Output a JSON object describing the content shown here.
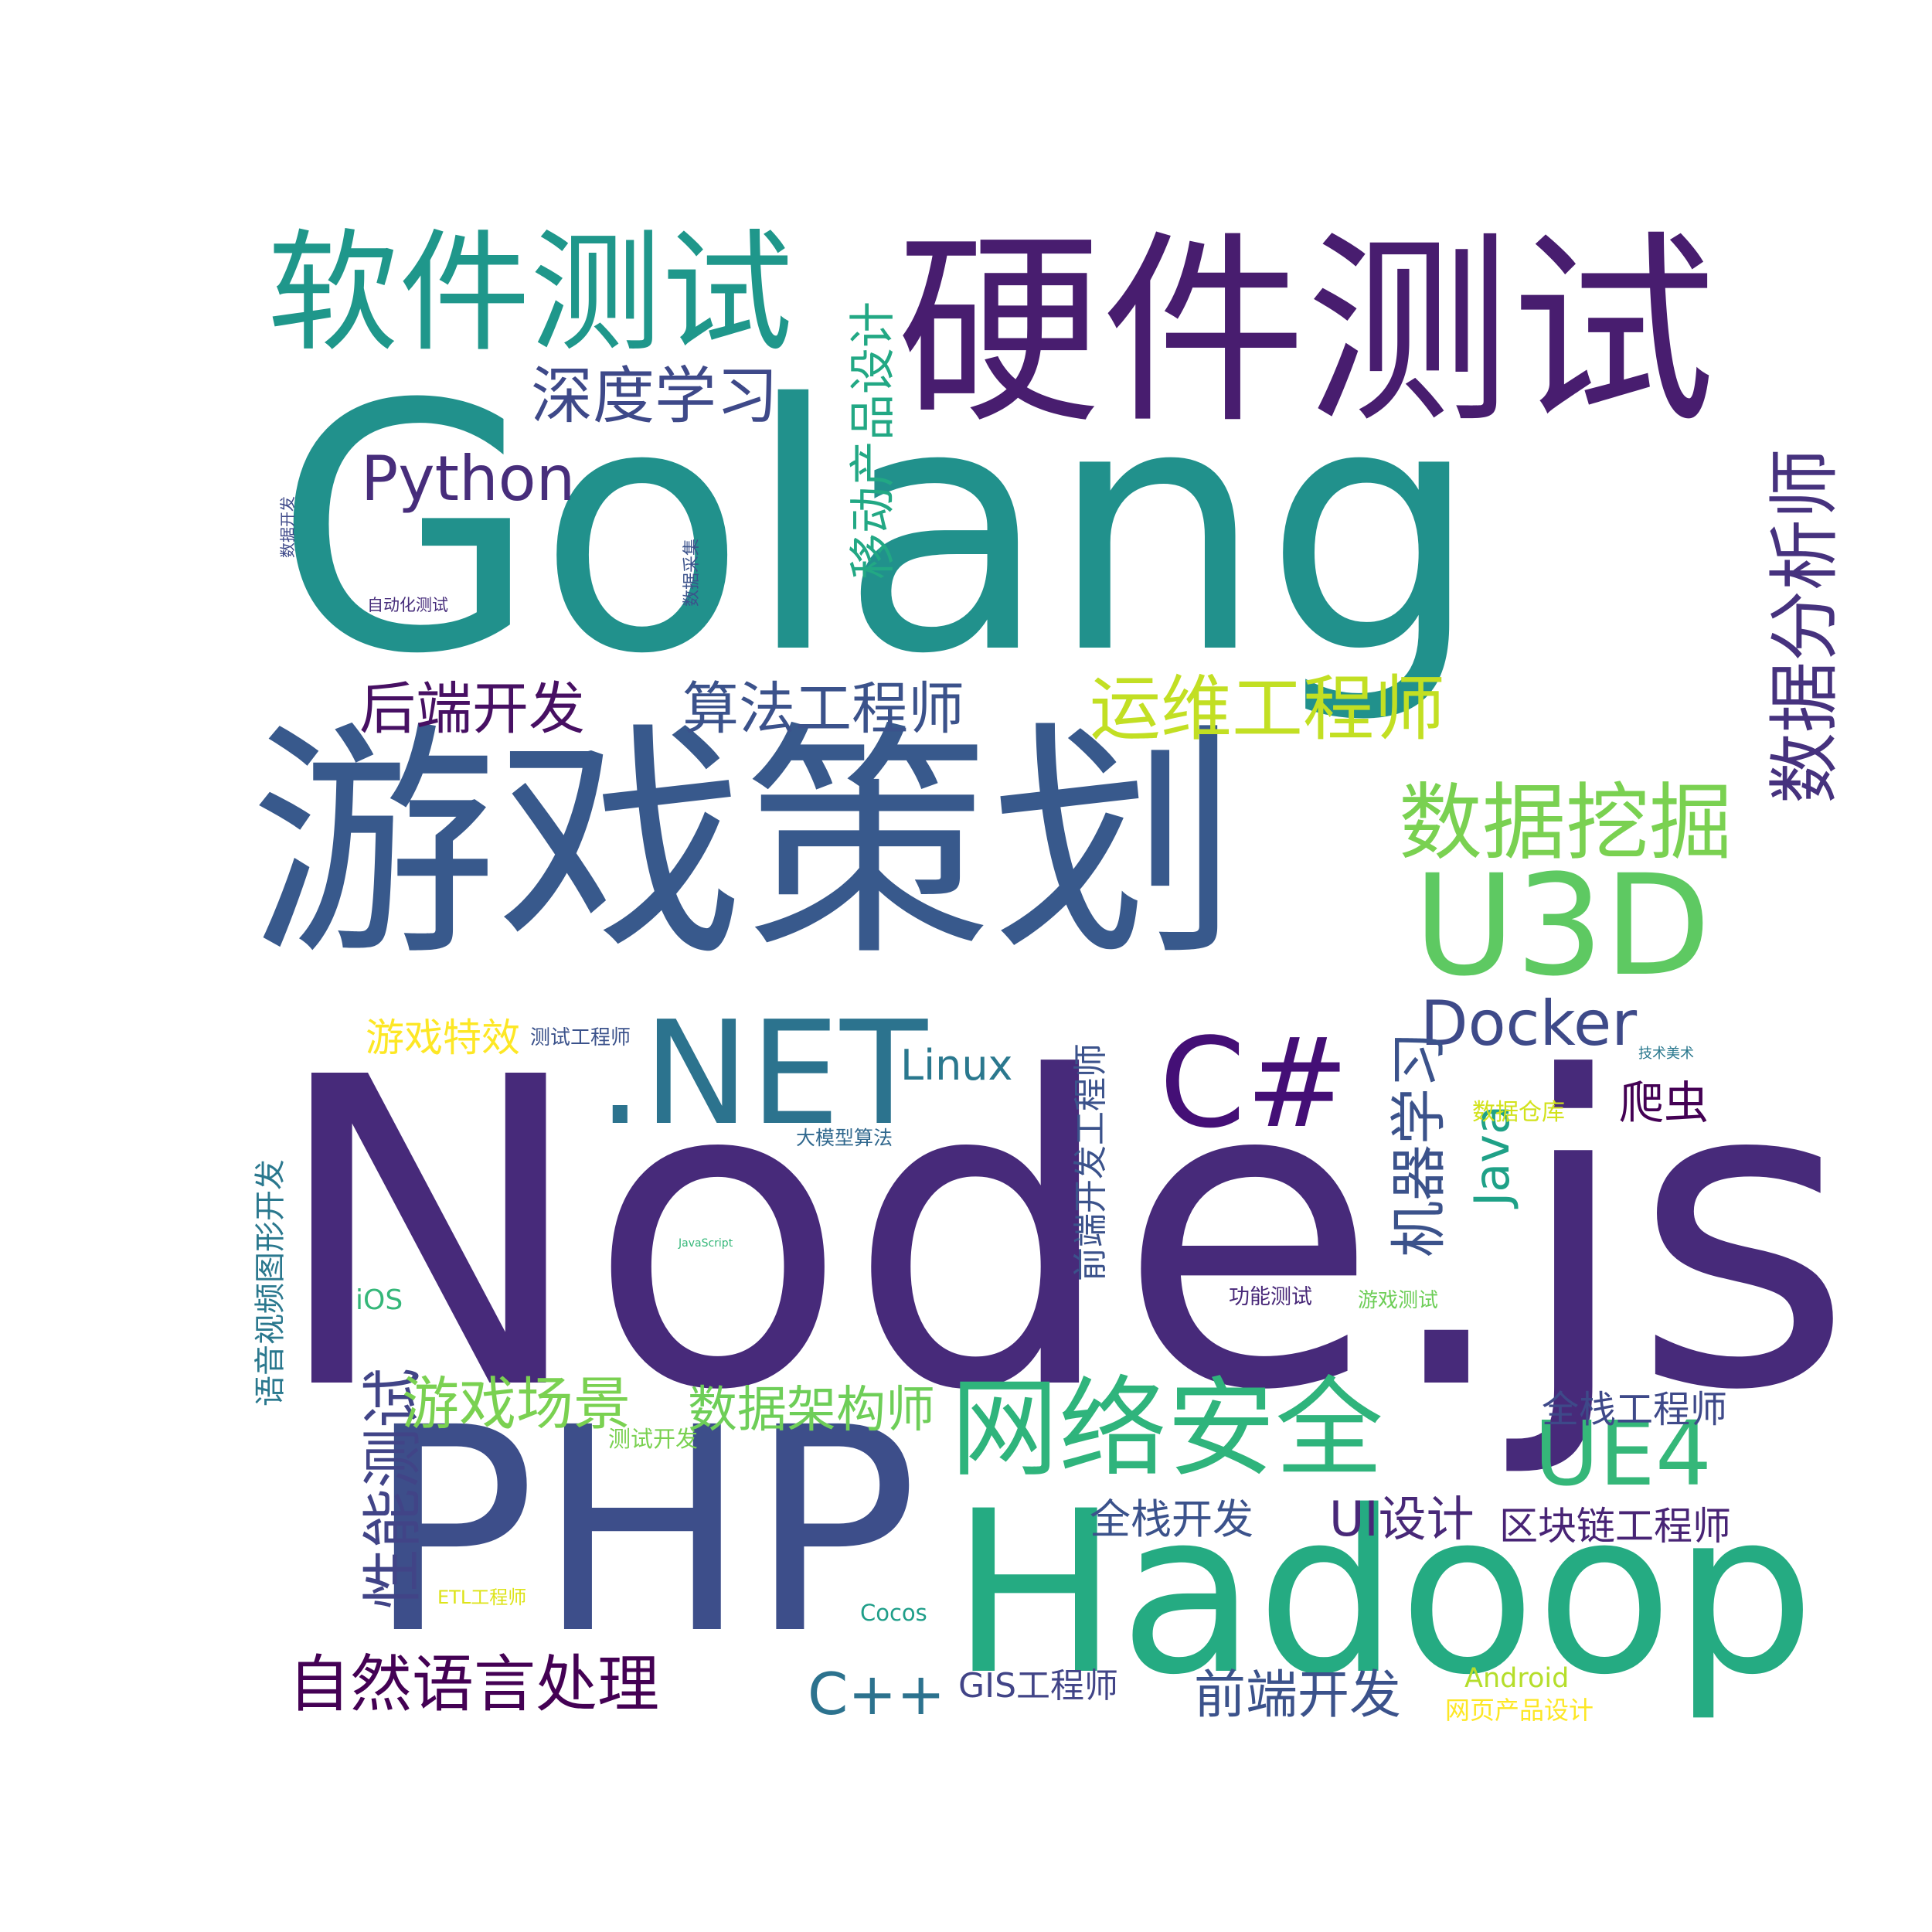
{
  "words": [
    {
      "text": "Node.js",
      "color": "#472a7a"
    },
    {
      "text": "Golang",
      "color": "#21918c"
    },
    {
      "text": "游戏策划",
      "color": "#38598c"
    },
    {
      "text": "硬件测试",
      "color": "#481d6f"
    },
    {
      "text": "PHP",
      "color": "#3d4e8a"
    },
    {
      "text": "Hadoop",
      "color": "#25ab82"
    },
    {
      "text": "软件测试",
      "color": "#1f978b"
    },
    {
      "text": "U3D",
      "color": "#5ec962"
    },
    {
      "text": "网络安全",
      "color": "#2fb47c"
    },
    {
      "text": ".NET",
      "color": "#2c738e"
    },
    {
      "text": "C#",
      "color": "#440f76"
    },
    {
      "text": "数据挖掘",
      "color": "#7ad151"
    },
    {
      "text": "运维工程师",
      "color": "#c2df23"
    },
    {
      "text": "数据分析师",
      "color": "#46327e"
    },
    {
      "text": "深度学习",
      "color": "#3e4989"
    },
    {
      "text": "Python",
      "color": "#472d7b"
    },
    {
      "text": "算法工程师",
      "color": "#3b528b"
    },
    {
      "text": "后端开发",
      "color": "#471063"
    },
    {
      "text": "Docker",
      "color": "#3e4a89"
    },
    {
      "text": "UE4",
      "color": "#35b779"
    },
    {
      "text": "自然语言处理",
      "color": "#440154"
    },
    {
      "text": "性能测试",
      "color": "#414487"
    },
    {
      "text": "机器学习",
      "color": "#3b528b"
    },
    {
      "text": "移动产品设计",
      "color": "#22a884"
    },
    {
      "text": "游戏场景",
      "color": "#7ad151"
    },
    {
      "text": "数据架构师",
      "color": "#6ece58"
    },
    {
      "text": "Java",
      "color": "#1fa187"
    },
    {
      "text": "前端开发",
      "color": "#3b528b"
    },
    {
      "text": "C++",
      "color": "#2c728e"
    },
    {
      "text": "UI设计",
      "color": "#482878"
    },
    {
      "text": "区块链工程师",
      "color": "#482475"
    },
    {
      "text": "全栈开发",
      "color": "#3b528b"
    },
    {
      "text": "全栈工程师",
      "color": "#3e4989"
    },
    {
      "text": "Linux",
      "color": "#2a788e"
    },
    {
      "text": "游戏特效",
      "color": "#fde725"
    },
    {
      "text": "爬虫",
      "color": "#440154"
    },
    {
      "text": "前端开发工程师",
      "color": "#3b528b"
    },
    {
      "text": "语音视频图形开发",
      "color": "#2a788e"
    },
    {
      "text": "GIS工程师",
      "color": "#414487"
    },
    {
      "text": "测试工程师",
      "color": "#3b528b"
    },
    {
      "text": "数据仓库",
      "color": "#d2e21b"
    },
    {
      "text": "Android",
      "color": "#b5de2b"
    },
    {
      "text": "网页产品设计",
      "color": "#fde725"
    },
    {
      "text": "iOS",
      "color": "#35b779"
    },
    {
      "text": "功能测试",
      "color": "#482878"
    },
    {
      "text": "游戏测试",
      "color": "#6ece58"
    },
    {
      "text": "测试开发",
      "color": "#7ad151"
    },
    {
      "text": "Cocos",
      "color": "#1f9e89"
    },
    {
      "text": "ETL工程师",
      "color": "#dde318"
    },
    {
      "text": "大模型算法",
      "color": "#31688e"
    },
    {
      "text": "自动化测试",
      "color": "#472d7b"
    },
    {
      "text": "数据开发",
      "color": "#3e4989"
    },
    {
      "text": "数据采集",
      "color": "#3b528b"
    },
    {
      "text": "技术美术",
      "color": "#2a788e"
    },
    {
      "text": "JavaScript",
      "color": "#35b779"
    }
  ]
}
